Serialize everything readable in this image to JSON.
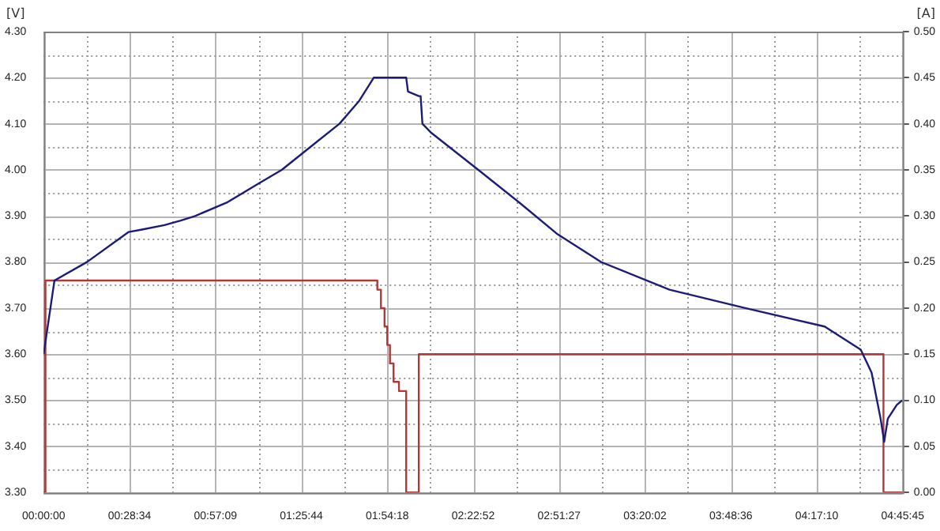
{
  "chart_data": {
    "type": "line",
    "ylabel": "[V]",
    "y2label": "[A]",
    "series": [
      {
        "color": "#1c1c78",
        "x": [
          0,
          0.06,
          0.24,
          0.47,
          0.54,
          0.67,
          0.76,
          0.84,
          1.02,
          1.19,
          1.32,
          1.48,
          1.64,
          1.75,
          1.83,
          2.01,
          2.02,
          2.08,
          2.09,
          2.1,
          2.15,
          2.41,
          2.65,
          2.85,
          3.09,
          3.47,
          3.89,
          4.33,
          4.53,
          4.59,
          4.64,
          4.66,
          4.68,
          4.73,
          4.76
        ],
        "values": [
          3.6,
          3.76,
          3.8,
          3.865,
          3.87,
          3.88,
          3.89,
          3.9,
          3.93,
          3.97,
          4.0,
          4.05,
          4.1,
          4.15,
          4.2,
          4.2,
          4.17,
          4.16,
          4.16,
          4.1,
          4.08,
          4.0,
          3.925,
          3.86,
          3.8,
          3.74,
          3.7,
          3.66,
          3.61,
          3.56,
          3.46,
          3.41,
          3.46,
          3.49,
          3.5
        ]
      },
      {
        "type": "step",
        "axis": "y2",
        "color": "#b03838",
        "x": [
          0,
          0.01,
          1.85,
          1.87,
          1.89,
          1.905,
          1.92,
          1.94,
          1.97,
          2.01,
          2.08,
          4.656,
          4.7625
        ],
        "values": [
          0,
          0.23,
          0.22,
          0.2,
          0.18,
          0.16,
          0.14,
          0.12,
          0.11,
          0,
          0.15,
          0,
          0
        ]
      }
    ],
    "xlim": [
      0,
      4.7625
    ],
    "xticks": [
      {
        "value": 0,
        "label": "00:00:00"
      },
      {
        "value": 0.238125,
        "label": null
      },
      {
        "value": 0.47625,
        "label": "00:28:34"
      },
      {
        "value": 0.714375,
        "label": null
      },
      {
        "value": 0.9525,
        "label": "00:57:09"
      },
      {
        "value": 1.190625,
        "label": null
      },
      {
        "value": 1.42875,
        "label": "01:25:44"
      },
      {
        "value": 1.666875,
        "label": null
      },
      {
        "value": 1.905,
        "label": "01:54:18"
      },
      {
        "value": 2.143125,
        "label": null
      },
      {
        "value": 2.38125,
        "label": "02:22:52"
      },
      {
        "value": 2.619375,
        "label": null
      },
      {
        "value": 2.8575,
        "label": "02:51:27"
      },
      {
        "value": 3.095625,
        "label": null
      },
      {
        "value": 3.33375,
        "label": "03:20:02"
      },
      {
        "value": 3.571875,
        "label": null
      },
      {
        "value": 3.81,
        "label": "03:48:36"
      },
      {
        "value": 4.048125,
        "label": null
      },
      {
        "value": 4.28625,
        "label": "04:17:10"
      },
      {
        "value": 4.524375,
        "label": null
      },
      {
        "value": 4.7625,
        "label": "04:45:45"
      }
    ],
    "ylim": [
      3.3,
      4.3
    ],
    "yticks": [
      {
        "value": 3.3,
        "label": "3.30"
      },
      {
        "value": 3.35,
        "label": null
      },
      {
        "value": 3.4,
        "label": "3.40"
      },
      {
        "value": 3.45,
        "label": null
      },
      {
        "value": 3.5,
        "label": "3.50"
      },
      {
        "value": 3.55,
        "label": null
      },
      {
        "value": 3.6,
        "label": "3.60"
      },
      {
        "value": 3.65,
        "label": null
      },
      {
        "value": 3.7,
        "label": "3.70"
      },
      {
        "value": 3.75,
        "label": null
      },
      {
        "value": 3.8,
        "label": "3.80"
      },
      {
        "value": 3.85,
        "label": null
      },
      {
        "value": 3.9,
        "label": "3.90"
      },
      {
        "value": 3.95,
        "label": null
      },
      {
        "value": 4.0,
        "label": "4.00"
      },
      {
        "value": 4.05,
        "label": null
      },
      {
        "value": 4.1,
        "label": "4.10"
      },
      {
        "value": 4.15,
        "label": null
      },
      {
        "value": 4.2,
        "label": "4.20"
      },
      {
        "value": 4.25,
        "label": null
      },
      {
        "value": 4.3,
        "label": "4.30"
      }
    ],
    "y2lim": [
      0,
      0.5
    ],
    "y2ticks": [
      {
        "value": 0,
        "label": "0.00"
      },
      {
        "value": 0.05,
        "label": "0.05"
      },
      {
        "value": 0.1,
        "label": "0.10"
      },
      {
        "value": 0.15,
        "label": "0.15"
      },
      {
        "value": 0.2,
        "label": "0.20"
      },
      {
        "value": 0.25,
        "label": "0.25"
      },
      {
        "value": 0.3,
        "label": "0.30"
      },
      {
        "value": 0.35,
        "label": "0.35"
      },
      {
        "value": 0.4,
        "label": "0.40"
      },
      {
        "value": 0.45,
        "label": "0.45"
      },
      {
        "value": 0.5,
        "label": "0.50"
      }
    ],
    "grid": true
  }
}
